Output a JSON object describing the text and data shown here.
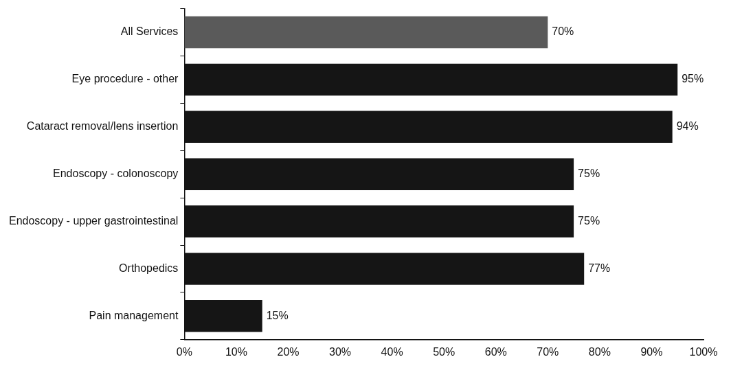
{
  "chart_data": {
    "type": "bar",
    "orientation": "horizontal",
    "categories": [
      "All Services",
      "Eye procedure - other",
      "Cataract removal/lens insertion",
      "Endoscopy - colonoscopy",
      "Endoscopy - upper gastrointestinal",
      "Orthopedics",
      "Pain management"
    ],
    "values": [
      70,
      95,
      94,
      75,
      75,
      77,
      15
    ],
    "colors": [
      "#5a5a5a",
      "#151515",
      "#151515",
      "#151515",
      "#151515",
      "#151515",
      "#151515"
    ],
    "value_labels": [
      "70%",
      "95%",
      "94%",
      "75%",
      "75%",
      "77%",
      "15%"
    ],
    "xlim": [
      0,
      100
    ],
    "xticks": [
      {
        "value": 0,
        "label": "0%"
      },
      {
        "value": 10,
        "label": "10%"
      },
      {
        "value": 20,
        "label": "20%"
      },
      {
        "value": 30,
        "label": "30%"
      },
      {
        "value": 40,
        "label": "40%"
      },
      {
        "value": 50,
        "label": "50%"
      },
      {
        "value": 60,
        "label": "60%"
      },
      {
        "value": 70,
        "label": "70%"
      },
      {
        "value": 80,
        "label": "80%"
      },
      {
        "value": 90,
        "label": "90%"
      },
      {
        "value": 100,
        "label": "100%"
      }
    ],
    "grid": false,
    "legend": false
  }
}
